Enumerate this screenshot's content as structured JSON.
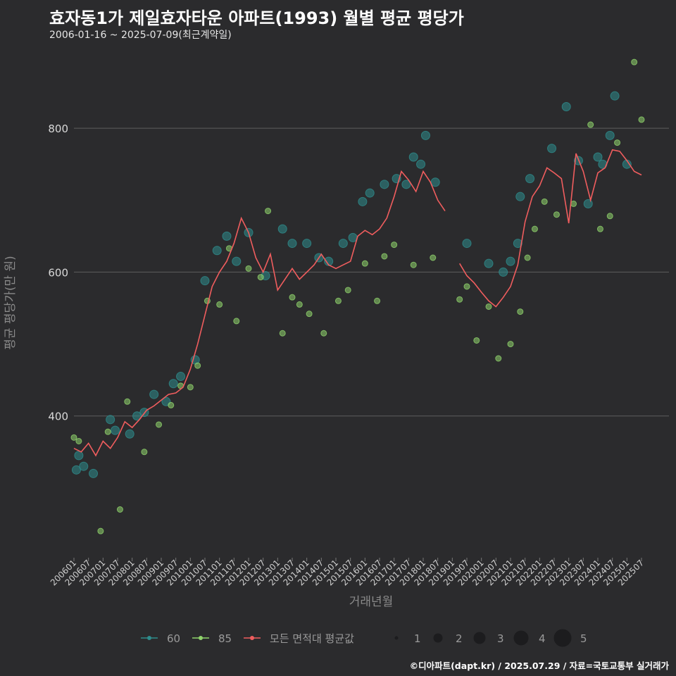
{
  "header": {
    "title": "효자동1가 제일효자타운 아파트(1993) 월별 평균 평당가",
    "subtitle": "2006-01-16 ~ 2025-07-09(최근계약일)"
  },
  "caption": "©디아파트(dapt.kr) / 2025.07.29 / 자료=국토교통부 실거래가",
  "colors": {
    "background": "#2b2b2d",
    "grid": "#5e5e5e",
    "s60": "#2e8c8c",
    "s85": "#8fd36c",
    "avg": "#f05d5e"
  },
  "chart_data": {
    "type": "line",
    "xlabel": "거래년월",
    "ylabel": "평균 평당가(만 원)",
    "ylim": [
      200,
      900
    ],
    "yticks": [
      400,
      600,
      800
    ],
    "x_range": [
      "2006-01",
      "2025-07"
    ],
    "xtick_labels": [
      "200601",
      "200607",
      "200701",
      "200707",
      "200801",
      "200807",
      "200901",
      "200907",
      "201001",
      "201007",
      "201101",
      "201107",
      "201201",
      "201207",
      "201301",
      "201307",
      "201401",
      "201407",
      "201501",
      "201507",
      "201601",
      "201607",
      "201701",
      "201707",
      "201801",
      "201807",
      "201901",
      "201907",
      "202001",
      "202007",
      "202101",
      "202107",
      "202201",
      "202207",
      "202301",
      "202307",
      "202401",
      "202407",
      "202501",
      "202507"
    ],
    "grid": "horizontal",
    "legend": {
      "position": "bottom",
      "series_items": [
        {
          "label": "60",
          "color": "#2e8c8c"
        },
        {
          "label": "85",
          "color": "#8fd36c"
        },
        {
          "label": "모든 면적대 평균값",
          "color": "#f05d5e"
        }
      ],
      "size_items": [
        "1",
        "2",
        "3",
        "4",
        "5"
      ]
    },
    "series": [
      {
        "name": "모든 면적대 평균값",
        "points": [
          [
            "2006-01",
            355
          ],
          [
            "2006-04",
            350
          ],
          [
            "2006-07",
            362
          ],
          [
            "2006-10",
            345
          ],
          [
            "2007-01",
            365
          ],
          [
            "2007-04",
            355
          ],
          [
            "2007-07",
            370
          ],
          [
            "2007-10",
            392
          ],
          [
            "2008-01",
            384
          ],
          [
            "2008-04",
            395
          ],
          [
            "2008-07",
            408
          ],
          [
            "2008-10",
            414
          ],
          [
            "2009-01",
            422
          ],
          [
            "2009-04",
            430
          ],
          [
            "2009-07",
            432
          ],
          [
            "2009-10",
            440
          ],
          [
            "2010-01",
            465
          ],
          [
            "2010-04",
            500
          ],
          [
            "2010-07",
            540
          ],
          [
            "2010-10",
            580
          ],
          [
            "2011-01",
            600
          ],
          [
            "2011-04",
            615
          ],
          [
            "2011-07",
            640
          ],
          [
            "2011-10",
            675
          ],
          [
            "2012-01",
            655
          ],
          [
            "2012-04",
            620
          ],
          [
            "2012-07",
            600
          ],
          [
            "2012-10",
            625
          ],
          [
            "2013-01",
            575
          ],
          [
            "2013-04",
            590
          ],
          [
            "2013-07",
            605
          ],
          [
            "2013-10",
            590
          ],
          [
            "2014-01",
            600
          ],
          [
            "2014-04",
            610
          ],
          [
            "2014-07",
            625
          ],
          [
            "2014-10",
            610
          ],
          [
            "2015-01",
            605
          ],
          [
            "2015-04",
            610
          ],
          [
            "2015-07",
            615
          ],
          [
            "2015-10",
            650
          ],
          [
            "2016-01",
            658
          ],
          [
            "2016-04",
            652
          ],
          [
            "2016-07",
            660
          ],
          [
            "2016-10",
            675
          ],
          [
            "2017-01",
            705
          ],
          [
            "2017-04",
            740
          ],
          [
            "2017-07",
            728
          ],
          [
            "2017-10",
            712
          ],
          [
            "2018-01",
            740
          ],
          [
            "2018-04",
            725
          ],
          [
            "2018-07",
            700
          ],
          [
            "2018-10",
            685
          ],
          [
            "2019-04",
            612
          ],
          [
            "2019-07",
            595
          ],
          [
            "2019-10",
            585
          ],
          [
            "2020-01",
            572
          ],
          [
            "2020-04",
            560
          ],
          [
            "2020-07",
            552
          ],
          [
            "2020-10",
            565
          ],
          [
            "2021-01",
            580
          ],
          [
            "2021-04",
            610
          ],
          [
            "2021-07",
            670
          ],
          [
            "2021-10",
            705
          ],
          [
            "2022-01",
            720
          ],
          [
            "2022-04",
            745
          ],
          [
            "2022-07",
            738
          ],
          [
            "2022-10",
            730
          ],
          [
            "2023-01",
            668
          ],
          [
            "2023-04",
            765
          ],
          [
            "2023-07",
            740
          ],
          [
            "2023-10",
            700
          ],
          [
            "2024-01",
            738
          ],
          [
            "2024-04",
            745
          ],
          [
            "2024-07",
            770
          ],
          [
            "2024-10",
            768
          ],
          [
            "2025-01",
            755
          ],
          [
            "2025-04",
            740
          ],
          [
            "2025-07",
            735
          ]
        ]
      },
      {
        "name": "60",
        "points": [
          [
            "2006-02",
            325
          ],
          [
            "2006-03",
            345
          ],
          [
            "2006-05",
            330
          ],
          [
            "2006-09",
            320
          ],
          [
            "2007-04",
            395
          ],
          [
            "2007-06",
            380
          ],
          [
            "2007-12",
            375
          ],
          [
            "2008-03",
            400
          ],
          [
            "2008-06",
            405
          ],
          [
            "2008-10",
            430
          ],
          [
            "2009-03",
            420
          ],
          [
            "2009-06",
            445
          ],
          [
            "2009-09",
            455
          ],
          [
            "2010-03",
            478
          ],
          [
            "2010-07",
            588
          ],
          [
            "2010-12",
            630
          ],
          [
            "2011-04",
            650
          ],
          [
            "2011-08",
            615
          ],
          [
            "2012-01",
            655
          ],
          [
            "2012-08",
            595
          ],
          [
            "2013-03",
            660
          ],
          [
            "2013-07",
            640
          ],
          [
            "2014-01",
            640
          ],
          [
            "2014-06",
            620
          ],
          [
            "2014-10",
            615
          ],
          [
            "2015-04",
            640
          ],
          [
            "2015-08",
            648
          ],
          [
            "2015-12",
            698
          ],
          [
            "2016-03",
            710
          ],
          [
            "2016-09",
            722
          ],
          [
            "2017-02",
            730
          ],
          [
            "2017-06",
            722
          ],
          [
            "2017-09",
            760
          ],
          [
            "2017-12",
            750
          ],
          [
            "2018-02",
            790
          ],
          [
            "2018-06",
            725
          ],
          [
            "2019-07",
            640
          ],
          [
            "2020-04",
            612
          ],
          [
            "2020-10",
            600
          ],
          [
            "2021-01",
            615
          ],
          [
            "2021-04",
            640
          ],
          [
            "2021-05",
            705
          ],
          [
            "2021-09",
            730
          ],
          [
            "2022-06",
            772
          ],
          [
            "2022-12",
            830
          ],
          [
            "2023-05",
            755
          ],
          [
            "2023-09",
            695
          ],
          [
            "2024-01",
            760
          ],
          [
            "2024-03",
            750
          ],
          [
            "2024-06",
            790
          ],
          [
            "2024-08",
            845
          ],
          [
            "2025-01",
            750
          ]
        ]
      },
      {
        "name": "85",
        "points": [
          [
            "2006-01",
            370
          ],
          [
            "2006-03",
            365
          ],
          [
            "2006-12",
            240
          ],
          [
            "2007-03",
            378
          ],
          [
            "2007-08",
            270
          ],
          [
            "2007-11",
            420
          ],
          [
            "2008-06",
            350
          ],
          [
            "2008-12",
            388
          ],
          [
            "2009-05",
            415
          ],
          [
            "2009-09",
            442
          ],
          [
            "2010-01",
            440
          ],
          [
            "2010-04",
            470
          ],
          [
            "2010-08",
            560
          ],
          [
            "2011-01",
            555
          ],
          [
            "2011-05",
            633
          ],
          [
            "2011-08",
            532
          ],
          [
            "2012-01",
            605
          ],
          [
            "2012-06",
            593
          ],
          [
            "2012-09",
            685
          ],
          [
            "2013-03",
            515
          ],
          [
            "2013-07",
            565
          ],
          [
            "2013-10",
            555
          ],
          [
            "2014-02",
            542
          ],
          [
            "2014-08",
            515
          ],
          [
            "2015-02",
            560
          ],
          [
            "2015-06",
            575
          ],
          [
            "2016-01",
            612
          ],
          [
            "2016-06",
            560
          ],
          [
            "2016-09",
            622
          ],
          [
            "2017-01",
            638
          ],
          [
            "2017-09",
            610
          ],
          [
            "2018-05",
            620
          ],
          [
            "2019-04",
            562
          ],
          [
            "2019-07",
            580
          ],
          [
            "2019-11",
            505
          ],
          [
            "2020-04",
            552
          ],
          [
            "2020-08",
            480
          ],
          [
            "2021-01",
            500
          ],
          [
            "2021-05",
            545
          ],
          [
            "2021-08",
            620
          ],
          [
            "2021-11",
            660
          ],
          [
            "2022-03",
            698
          ],
          [
            "2022-08",
            680
          ],
          [
            "2023-03",
            695
          ],
          [
            "2023-10",
            805
          ],
          [
            "2024-02",
            660
          ],
          [
            "2024-06",
            678
          ],
          [
            "2024-09",
            780
          ],
          [
            "2025-04",
            892
          ],
          [
            "2025-07",
            812
          ]
        ]
      }
    ]
  }
}
